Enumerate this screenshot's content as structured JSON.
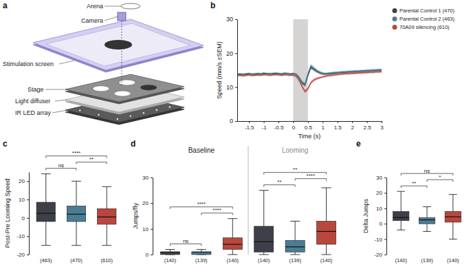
{
  "diagram": {
    "panel_label": "a",
    "labels": [
      "Camera",
      "Arena",
      "Stimulation screen",
      "Stage",
      "Light diffuser",
      "IR LED array"
    ]
  },
  "chart_data": [
    {
      "type": "line",
      "panel_label": "b",
      "x_label": "Time (s)",
      "y_label": "Speed (mm/s ±SEM)",
      "legend": "right",
      "x": [
        -1.9,
        -1.8,
        -1.7,
        -1.6,
        -1.5,
        -1.4,
        -1.3,
        -1.2,
        -1.1,
        -1.0,
        -0.9,
        -0.8,
        -0.7,
        -0.6,
        -0.5,
        -0.4,
        -0.3,
        -0.2,
        -0.1,
        0,
        0.1,
        0.2,
        0.3,
        0.4,
        0.5,
        0.6,
        0.7,
        0.8,
        0.9,
        1.0,
        1.1,
        1.2,
        1.3,
        1.4,
        1.5,
        1.6,
        1.7,
        1.8,
        1.9,
        2.0,
        2.1,
        2.2,
        2.3,
        2.4,
        2.5,
        2.6,
        2.7,
        2.8,
        2.9,
        3.0
      ],
      "xlim": [
        -1.9,
        3.0
      ],
      "xticks": [
        -1.5,
        -1,
        -0.5,
        0,
        0.5,
        1,
        1.5,
        2,
        2.5,
        3
      ],
      "ylim": [
        0,
        30
      ],
      "yticks": [
        0,
        10,
        20,
        30
      ],
      "shaded_region": [
        0,
        0.5
      ],
      "series": [
        {
          "name": "Parental Control 1 (470)",
          "color": "#3e4049",
          "values": [
            13.8,
            13.9,
            13.7,
            13.9,
            14.0,
            13.8,
            13.9,
            14.0,
            13.9,
            14.1,
            14.0,
            13.9,
            14.0,
            14.1,
            14.0,
            13.9,
            14.1,
            14.0,
            13.9,
            14.0,
            13.8,
            12.8,
            11.2,
            10.6,
            13.5,
            15.8,
            15.2,
            14.6,
            14.2,
            13.9,
            13.8,
            13.9,
            14.0,
            14.1,
            14.2,
            14.3,
            14.3,
            14.4,
            14.5,
            14.5,
            14.6,
            14.6,
            14.7,
            14.7,
            14.8,
            14.8,
            14.9,
            14.9,
            15.0,
            15.0
          ],
          "errors": [
            0.3,
            0.3,
            0.3,
            0.3,
            0.3,
            0.3,
            0.3,
            0.3,
            0.3,
            0.3,
            0.3,
            0.3,
            0.3,
            0.3,
            0.3,
            0.3,
            0.3,
            0.3,
            0.3,
            0.3,
            0.3,
            0.4,
            0.5,
            0.5,
            0.5,
            0.5,
            0.5,
            0.4,
            0.4,
            0.35,
            0.35,
            0.35,
            0.35,
            0.35,
            0.35,
            0.35,
            0.35,
            0.35,
            0.35,
            0.35,
            0.35,
            0.35,
            0.35,
            0.35,
            0.35,
            0.35,
            0.35,
            0.35,
            0.35,
            0.35
          ]
        },
        {
          "name": "Parental Control 2 (463)",
          "color": "#4a7c94",
          "values": [
            13.6,
            13.7,
            13.8,
            13.6,
            13.8,
            13.9,
            13.7,
            13.8,
            13.9,
            13.8,
            13.9,
            14.0,
            13.8,
            13.9,
            14.0,
            13.8,
            13.9,
            14.0,
            13.8,
            13.9,
            13.7,
            12.9,
            11.5,
            10.9,
            13.9,
            16.3,
            15.6,
            14.9,
            14.4,
            14.1,
            14.0,
            14.1,
            14.2,
            14.3,
            14.3,
            14.4,
            14.5,
            14.5,
            14.6,
            14.6,
            14.7,
            14.7,
            14.8,
            14.8,
            14.9,
            14.9,
            15.0,
            15.0,
            15.1,
            15.1
          ],
          "errors": [
            0.3,
            0.3,
            0.3,
            0.3,
            0.3,
            0.3,
            0.3,
            0.3,
            0.3,
            0.3,
            0.3,
            0.3,
            0.3,
            0.3,
            0.3,
            0.3,
            0.3,
            0.3,
            0.3,
            0.3,
            0.3,
            0.4,
            0.5,
            0.5,
            0.5,
            0.5,
            0.5,
            0.4,
            0.4,
            0.35,
            0.35,
            0.35,
            0.35,
            0.35,
            0.35,
            0.35,
            0.35,
            0.35,
            0.35,
            0.35,
            0.35,
            0.35,
            0.35,
            0.35,
            0.35,
            0.35,
            0.35,
            0.35,
            0.35,
            0.35
          ]
        },
        {
          "name": "70A09 silencing (610)",
          "color": "#b8473d",
          "values": [
            13.4,
            13.5,
            13.3,
            13.5,
            13.6,
            13.4,
            13.5,
            13.6,
            13.5,
            13.7,
            13.6,
            13.5,
            13.6,
            13.7,
            13.6,
            13.5,
            13.6,
            13.6,
            13.5,
            13.5,
            13.2,
            12.0,
            10.2,
            8.7,
            9.5,
            11.3,
            12.1,
            12.5,
            12.8,
            13.0,
            13.2,
            13.4,
            13.5,
            13.6,
            13.7,
            13.8,
            13.9,
            14.0,
            14.0,
            14.1,
            14.1,
            14.2,
            14.2,
            14.3,
            14.3,
            14.4,
            14.4,
            14.5,
            14.5,
            14.6
          ],
          "errors": [
            0.3,
            0.3,
            0.3,
            0.3,
            0.3,
            0.3,
            0.3,
            0.3,
            0.3,
            0.3,
            0.3,
            0.3,
            0.3,
            0.3,
            0.3,
            0.3,
            0.3,
            0.3,
            0.3,
            0.3,
            0.3,
            0.4,
            0.5,
            0.5,
            0.5,
            0.5,
            0.5,
            0.4,
            0.4,
            0.35,
            0.35,
            0.35,
            0.35,
            0.35,
            0.35,
            0.35,
            0.35,
            0.35,
            0.35,
            0.35,
            0.35,
            0.35,
            0.35,
            0.35,
            0.35,
            0.35,
            0.35,
            0.35,
            0.35,
            0.35
          ]
        }
      ]
    },
    {
      "type": "box",
      "panel_label": "c",
      "y_label": "Post-Pre Looming Speed",
      "categories": [
        "(463)",
        "(470)",
        "(610)"
      ],
      "colors": [
        "#3e4049",
        "#4a7c94",
        "#b8473d"
      ],
      "boxes": [
        {
          "min": -15,
          "q1": -2,
          "median": 2.5,
          "q3": 8.5,
          "max": 24
        },
        {
          "min": -15,
          "q1": -2,
          "median": 2,
          "q3": 6.5,
          "max": 20
        },
        {
          "min": -15,
          "q1": -3.5,
          "median": 0.5,
          "q3": 5,
          "max": 17
        }
      ],
      "ylim": [
        -20,
        25
      ],
      "yticks": [
        -20,
        -10,
        0,
        10,
        20
      ],
      "significance": [
        {
          "from": 0,
          "to": 1,
          "label": "ns"
        },
        {
          "from": 1,
          "to": 2,
          "label": "**"
        },
        {
          "from": 0,
          "to": 2,
          "label": "****"
        }
      ]
    },
    {
      "type": "box",
      "panel_label": "d",
      "y_label": "Jumps/fly",
      "group_labels": [
        "Baseline",
        "Looming"
      ],
      "categories": [
        "(140)",
        "(139)",
        "(140)",
        "(140)",
        "(139)",
        "(140)"
      ],
      "colors": [
        "#3e4049",
        "#4a7c94",
        "#b8473d",
        "#3e4049",
        "#4a7c94",
        "#b8473d"
      ],
      "boxes": [
        {
          "min": 0,
          "q1": 0,
          "median": 1,
          "q3": 1,
          "max": 2
        },
        {
          "min": 0,
          "q1": 0,
          "median": 1,
          "q3": 1,
          "max": 2
        },
        {
          "min": 0,
          "q1": 2,
          "median": 4,
          "q3": 6.5,
          "max": 14
        },
        {
          "min": 0,
          "q1": 1,
          "median": 5,
          "q3": 11,
          "max": 25
        },
        {
          "min": 0,
          "q1": 1,
          "median": 3,
          "q3": 5.5,
          "max": 13
        },
        {
          "min": 0,
          "q1": 4,
          "median": 9,
          "q3": 13,
          "max": 26
        }
      ],
      "ylim": [
        0,
        30
      ],
      "yticks": [
        0,
        10,
        20,
        30
      ],
      "significance": [
        {
          "from": 0,
          "to": 1,
          "label": "ns"
        },
        {
          "from": 1,
          "to": 2,
          "label": "****"
        },
        {
          "from": 0,
          "to": 2,
          "label": "****"
        },
        {
          "from": 3,
          "to": 4,
          "label": "**"
        },
        {
          "from": 4,
          "to": 5,
          "label": "****"
        },
        {
          "from": 3,
          "to": 5,
          "label": "**"
        }
      ]
    },
    {
      "type": "box",
      "panel_label": "e",
      "y_label": "Delta Jumps",
      "categories": [
        "(140)",
        "(139)",
        "(140)"
      ],
      "colors": [
        "#3e4049",
        "#4a7c94",
        "#b8473d"
      ],
      "boxes": [
        {
          "min": -4,
          "q1": 2,
          "median": 4,
          "q3": 8,
          "max": 21
        },
        {
          "min": -5,
          "q1": 0,
          "median": 2.5,
          "q3": 4,
          "max": 11
        },
        {
          "min": -10,
          "q1": 1,
          "median": 4.5,
          "q3": 8,
          "max": 19
        }
      ],
      "ylim": [
        -20,
        30
      ],
      "yticks": [
        -20,
        -10,
        0,
        10,
        20,
        30
      ],
      "significance": [
        {
          "from": 0,
          "to": 1,
          "label": "**"
        },
        {
          "from": 1,
          "to": 2,
          "label": "*"
        },
        {
          "from": 0,
          "to": 2,
          "label": "ns"
        }
      ]
    }
  ]
}
